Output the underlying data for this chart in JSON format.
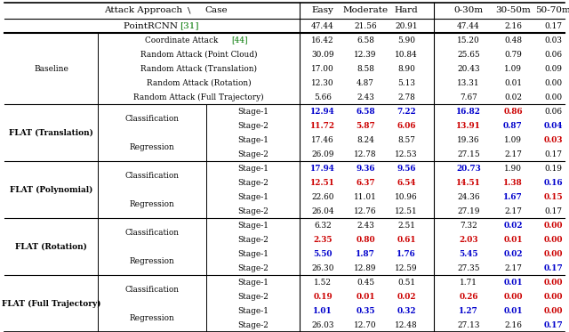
{
  "rows": [
    {
      "group": "Baseline",
      "method": "Coordinate Attack [44]",
      "stage": "",
      "vals": [
        "16.42",
        "6.58",
        "5.90",
        "15.20",
        "0.48",
        "0.03"
      ],
      "colors": [
        "k",
        "k",
        "k",
        "k",
        "k",
        "k"
      ]
    },
    {
      "group": "",
      "method": "Random Attack (Point Cloud)",
      "stage": "",
      "vals": [
        "30.09",
        "12.39",
        "10.84",
        "25.65",
        "0.79",
        "0.06"
      ],
      "colors": [
        "k",
        "k",
        "k",
        "k",
        "k",
        "k"
      ]
    },
    {
      "group": "",
      "method": "Random Attack (Translation)",
      "stage": "",
      "vals": [
        "17.00",
        "8.58",
        "8.90",
        "20.43",
        "1.09",
        "0.09"
      ],
      "colors": [
        "k",
        "k",
        "k",
        "k",
        "k",
        "k"
      ]
    },
    {
      "group": "",
      "method": "Random Attack (Rotation)",
      "stage": "",
      "vals": [
        "12.30",
        "4.87",
        "5.13",
        "13.31",
        "0.01",
        "0.00"
      ],
      "colors": [
        "k",
        "k",
        "k",
        "k",
        "k",
        "k"
      ]
    },
    {
      "group": "",
      "method": "Random Attack (Full Trajectory)",
      "stage": "",
      "vals": [
        "5.66",
        "2.43",
        "2.78",
        "7.67",
        "0.02",
        "0.00"
      ],
      "colors": [
        "k",
        "k",
        "k",
        "k",
        "k",
        "k"
      ]
    },
    {
      "group": "FLAT (Translation)",
      "method": "Classification",
      "stage": "Stage-1",
      "vals": [
        "12.94",
        "6.58",
        "7.22",
        "16.82",
        "0.86",
        "0.06"
      ],
      "colors": [
        "blue",
        "blue",
        "blue",
        "blue",
        "red",
        "k"
      ]
    },
    {
      "group": "",
      "method": "",
      "stage": "Stage-2",
      "vals": [
        "11.72",
        "5.87",
        "6.06",
        "13.91",
        "0.87",
        "0.04"
      ],
      "colors": [
        "red",
        "red",
        "red",
        "red",
        "blue",
        "blue"
      ]
    },
    {
      "group": "",
      "method": "Regression",
      "stage": "Stage-1",
      "vals": [
        "17.46",
        "8.24",
        "8.57",
        "19.36",
        "1.09",
        "0.03"
      ],
      "colors": [
        "k",
        "k",
        "k",
        "k",
        "k",
        "red"
      ]
    },
    {
      "group": "",
      "method": "",
      "stage": "Stage-2",
      "vals": [
        "26.09",
        "12.78",
        "12.53",
        "27.15",
        "2.17",
        "0.17"
      ],
      "colors": [
        "k",
        "k",
        "k",
        "k",
        "k",
        "k"
      ]
    },
    {
      "group": "FLAT (Polynomial)",
      "method": "Classification",
      "stage": "Stage-1",
      "vals": [
        "17.94",
        "9.36",
        "9.56",
        "20.73",
        "1.90",
        "0.19"
      ],
      "colors": [
        "blue",
        "blue",
        "blue",
        "blue",
        "k",
        "k"
      ]
    },
    {
      "group": "",
      "method": "",
      "stage": "Stage-2",
      "vals": [
        "12.51",
        "6.37",
        "6.54",
        "14.51",
        "1.38",
        "0.16"
      ],
      "colors": [
        "red",
        "red",
        "red",
        "red",
        "red",
        "blue"
      ]
    },
    {
      "group": "",
      "method": "Regression",
      "stage": "Stage-1",
      "vals": [
        "22.60",
        "11.01",
        "10.96",
        "24.36",
        "1.67",
        "0.15"
      ],
      "colors": [
        "k",
        "k",
        "k",
        "k",
        "blue",
        "red"
      ]
    },
    {
      "group": "",
      "method": "",
      "stage": "Stage-2",
      "vals": [
        "26.04",
        "12.76",
        "12.51",
        "27.19",
        "2.17",
        "0.17"
      ],
      "colors": [
        "k",
        "k",
        "k",
        "k",
        "k",
        "k"
      ]
    },
    {
      "group": "FLAT (Rotation)",
      "method": "Classification",
      "stage": "Stage-1",
      "vals": [
        "6.32",
        "2.43",
        "2.51",
        "7.32",
        "0.02",
        "0.00"
      ],
      "colors": [
        "k",
        "k",
        "k",
        "k",
        "blue",
        "red"
      ]
    },
    {
      "group": "",
      "method": "",
      "stage": "Stage-2",
      "vals": [
        "2.35",
        "0.80",
        "0.61",
        "2.03",
        "0.01",
        "0.00"
      ],
      "colors": [
        "red",
        "red",
        "red",
        "red",
        "red",
        "red"
      ]
    },
    {
      "group": "",
      "method": "Regression",
      "stage": "Stage-1",
      "vals": [
        "5.50",
        "1.87",
        "1.76",
        "5.45",
        "0.02",
        "0.00"
      ],
      "colors": [
        "blue",
        "blue",
        "blue",
        "blue",
        "blue",
        "red"
      ]
    },
    {
      "group": "",
      "method": "",
      "stage": "Stage-2",
      "vals": [
        "26.30",
        "12.89",
        "12.59",
        "27.35",
        "2.17",
        "0.17"
      ],
      "colors": [
        "k",
        "k",
        "k",
        "k",
        "k",
        "blue"
      ]
    },
    {
      "group": "FLAT (Full Trajectory)",
      "method": "Classification",
      "stage": "Stage-1",
      "vals": [
        "1.52",
        "0.45",
        "0.51",
        "1.71",
        "0.01",
        "0.00"
      ],
      "colors": [
        "k",
        "k",
        "k",
        "k",
        "blue",
        "red"
      ]
    },
    {
      "group": "",
      "method": "",
      "stage": "Stage-2",
      "vals": [
        "0.19",
        "0.01",
        "0.02",
        "0.26",
        "0.00",
        "0.00"
      ],
      "colors": [
        "red",
        "red",
        "red",
        "red",
        "red",
        "red"
      ]
    },
    {
      "group": "",
      "method": "Regression",
      "stage": "Stage-1",
      "vals": [
        "1.01",
        "0.35",
        "0.32",
        "1.27",
        "0.01",
        "0.00"
      ],
      "colors": [
        "blue",
        "blue",
        "blue",
        "blue",
        "blue",
        "red"
      ]
    },
    {
      "group": "",
      "method": "",
      "stage": "Stage-2",
      "vals": [
        "26.03",
        "12.70",
        "12.48",
        "27.13",
        "2.16",
        "0.17"
      ],
      "colors": [
        "k",
        "k",
        "k",
        "k",
        "k",
        "blue"
      ]
    }
  ],
  "group_spans": [
    {
      "name": "Baseline",
      "start": 0,
      "end": 4,
      "bold": false
    },
    {
      "name": "FLAT (Translation)",
      "start": 5,
      "end": 8,
      "bold": true
    },
    {
      "name": "FLAT (Polynomial)",
      "start": 9,
      "end": 12,
      "bold": true
    },
    {
      "name": "FLAT (Rotation)",
      "start": 13,
      "end": 16,
      "bold": true
    },
    {
      "name": "FLAT (Full Trajectory)",
      "start": 17,
      "end": 20,
      "bold": true
    }
  ],
  "method_spans": [
    {
      "name": "Classification",
      "start": 5,
      "end": 6
    },
    {
      "name": "Regression",
      "start": 7,
      "end": 8
    },
    {
      "name": "Classification",
      "start": 9,
      "end": 10
    },
    {
      "name": "Regression",
      "start": 11,
      "end": 12
    },
    {
      "name": "Classification",
      "start": 13,
      "end": 14
    },
    {
      "name": "Regression",
      "start": 15,
      "end": 16
    },
    {
      "name": "Classification",
      "start": 17,
      "end": 18
    },
    {
      "name": "Regression",
      "start": 19,
      "end": 20
    }
  ],
  "col_headers": [
    "Easy",
    "Moderate",
    "Hard",
    "0-30m",
    "30-50m",
    "50-70m"
  ],
  "prcnn_vals": [
    "47.44",
    "21.56",
    "20.91",
    "47.44",
    "2.16",
    "0.17"
  ],
  "header_label": "Attack Approach",
  "header_case": "Case",
  "bg_color": "#ffffff",
  "line_color": "#000000",
  "fs_header": 7.5,
  "fs_data": 6.4,
  "fs_group": 6.4,
  "fs_bold_group": 6.5
}
